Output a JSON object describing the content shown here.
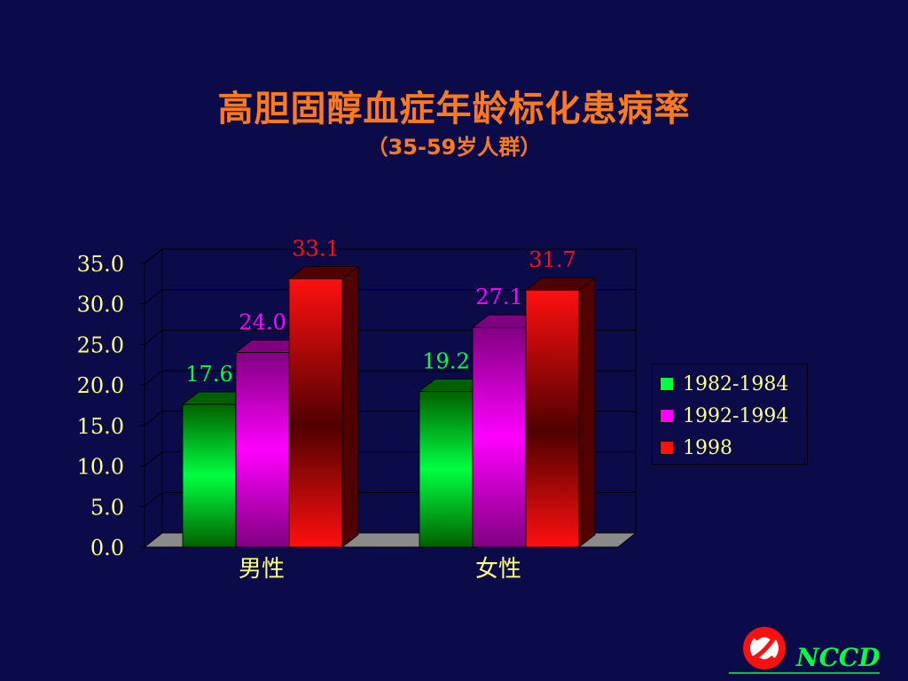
{
  "chart_data": {
    "type": "bar",
    "title": "高胆固醇血症年龄标化患病率",
    "subtitle": "（35-59岁人群）",
    "categories": [
      "男性",
      "女性"
    ],
    "series": [
      {
        "name": "1982-1984",
        "values": [
          17.6,
          19.2
        ],
        "color": "#00ff40"
      },
      {
        "name": "1992-1994",
        "values": [
          24.0,
          27.1
        ],
        "color": "#ff00ff"
      },
      {
        "name": "1998",
        "values": [
          33.1,
          31.7
        ],
        "color": "#ff1010"
      }
    ],
    "data_labels": [
      [
        "17.6",
        "19.2"
      ],
      [
        "24.0",
        "27.1"
      ],
      [
        "33.1",
        "31.7"
      ]
    ],
    "label_colors": [
      "#00ff40",
      "#ff00ff",
      "#ff1010"
    ],
    "yticks": [
      "0.0",
      "5.0",
      "10.0",
      "15.0",
      "20.0",
      "25.0",
      "30.0",
      "35.0"
    ],
    "ylim": [
      0,
      35
    ],
    "grid": true,
    "legend_position": "right",
    "style": "3d"
  },
  "logo": {
    "text": "NCCD"
  }
}
